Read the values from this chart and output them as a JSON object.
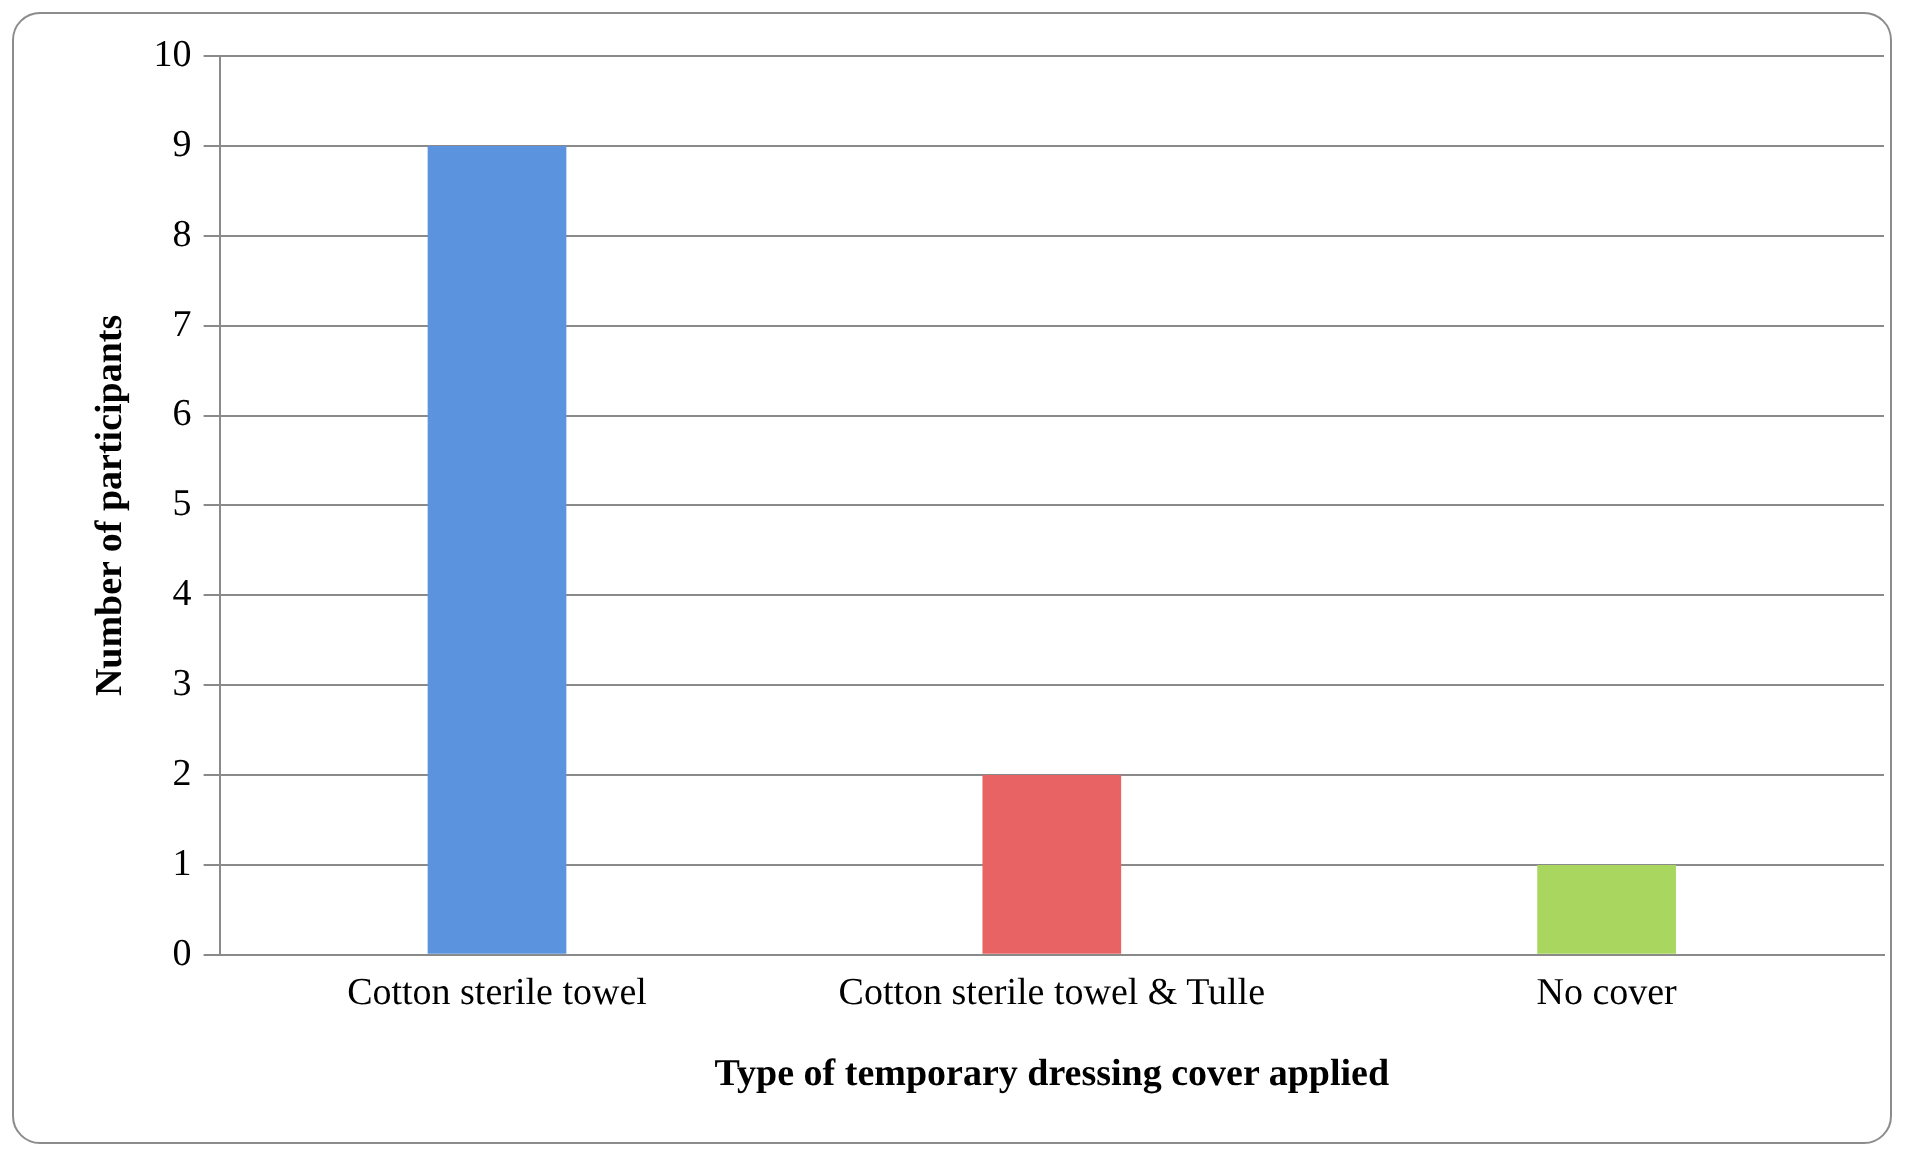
{
  "chart_data": {
    "type": "bar",
    "xlabel": "Type of temporary dressing cover applied",
    "ylabel": "Number of participants",
    "categories": [
      "Cotton sterile towel",
      "Cotton sterile towel & Tulle",
      "No cover"
    ],
    "values": [
      9,
      2,
      1
    ],
    "colors": [
      "#5b93de",
      "#e86464",
      "#a8d65e"
    ],
    "ylim": [
      0,
      10
    ],
    "yticks": [
      0,
      1,
      2,
      3,
      4,
      5,
      6,
      7,
      8,
      9,
      10
    ],
    "grid": "y",
    "legend": false
  }
}
